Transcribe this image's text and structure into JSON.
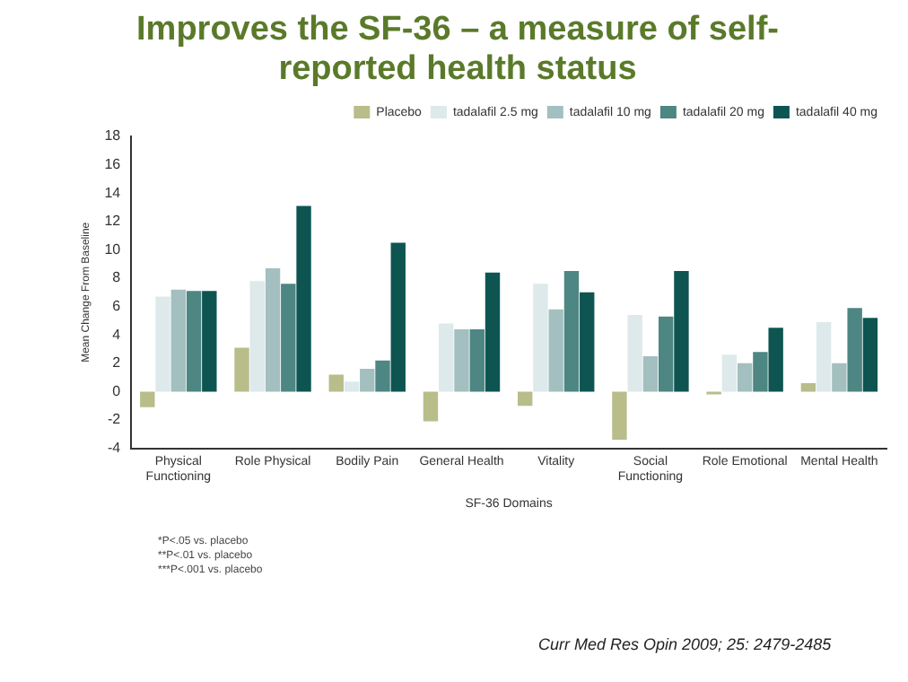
{
  "chart_data": {
    "type": "bar",
    "title": "Improves the SF-36 – a measure of self-reported health status",
    "xlabel": "SF-36 Domains",
    "ylabel": "Mean Change From Baseline",
    "categories": [
      "Physical Functioning",
      "Role Physical",
      "Bodily Pain",
      "General Health",
      "Vitality",
      "Social Functioning",
      "Role Emotional",
      "Mental Health"
    ],
    "series": [
      {
        "name": "Placebo",
        "color": "#b8bd8a",
        "values": [
          -1.1,
          3.1,
          1.2,
          -2.1,
          -1.0,
          -3.4,
          -0.2,
          0.6
        ]
      },
      {
        "name": "tadalafil 2.5 mg",
        "color": "#dde9ea",
        "values": [
          6.7,
          7.8,
          0.7,
          4.8,
          7.6,
          5.4,
          2.6,
          4.9
        ]
      },
      {
        "name": "tadalafil 10 mg",
        "color": "#a3bfbf",
        "values": [
          7.2,
          8.7,
          1.6,
          4.4,
          5.8,
          2.5,
          2.0,
          2.0
        ]
      },
      {
        "name": "tadalafil 20 mg",
        "color": "#4d8682",
        "values": [
          7.1,
          7.6,
          2.2,
          4.4,
          8.5,
          5.3,
          2.8,
          5.9
        ]
      },
      {
        "name": "tadalafil 40 mg",
        "color": "#0e5552",
        "values": [
          7.1,
          13.1,
          10.5,
          8.4,
          7.0,
          8.5,
          4.5,
          5.2
        ]
      }
    ],
    "ylim": [
      -4,
      18
    ],
    "yticks": [
      -4,
      -2,
      0,
      2,
      4,
      6,
      8,
      10,
      12,
      14,
      16,
      18
    ],
    "grid": false,
    "legend": "top right",
    "annotations": [
      "*P<.05 vs. placebo",
      "**P<.01 vs. placebo",
      "***P<.001 vs. placebo",
      "Curr Med Res Opin 2009; 25: 2479-2485"
    ]
  }
}
